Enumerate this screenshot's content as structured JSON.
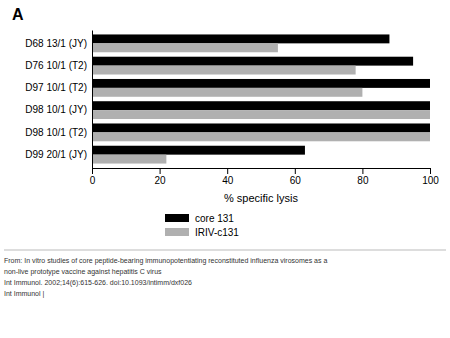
{
  "chart_data": {
    "type": "bar",
    "orientation": "horizontal",
    "title": "A",
    "categories": [
      "D68 13/1 (JY)",
      "D76 10/1 (T2)",
      "D97 10/1 (T2)",
      "D98 10/1 (JY)",
      "D98 10/1 (T2)",
      "D99 20/1 (JY)"
    ],
    "series": [
      {
        "name": "core 131",
        "color": "#000000",
        "values": [
          88,
          95,
          100,
          100,
          100,
          63
        ]
      },
      {
        "name": "IRIV-c131",
        "color": "#b0b0b0",
        "values": [
          55,
          78,
          80,
          100,
          100,
          22
        ]
      }
    ],
    "xlabel": "% specific lysis",
    "xlim": [
      0,
      100
    ],
    "xticks": [
      0,
      20,
      40,
      60,
      80,
      100
    ],
    "grid": false,
    "legend": "bottom",
    "annotations": [
      "From: In vitro studies of core peptide-bearing immunopotentiating reconstituted influenza virosomes as a",
      "non-live prototype vaccine against hepatitis C virus",
      "Int Immunol. 2002;14(6):615-626. doi:10.1093/intimm/dxf026",
      "Int Immunol |"
    ]
  }
}
